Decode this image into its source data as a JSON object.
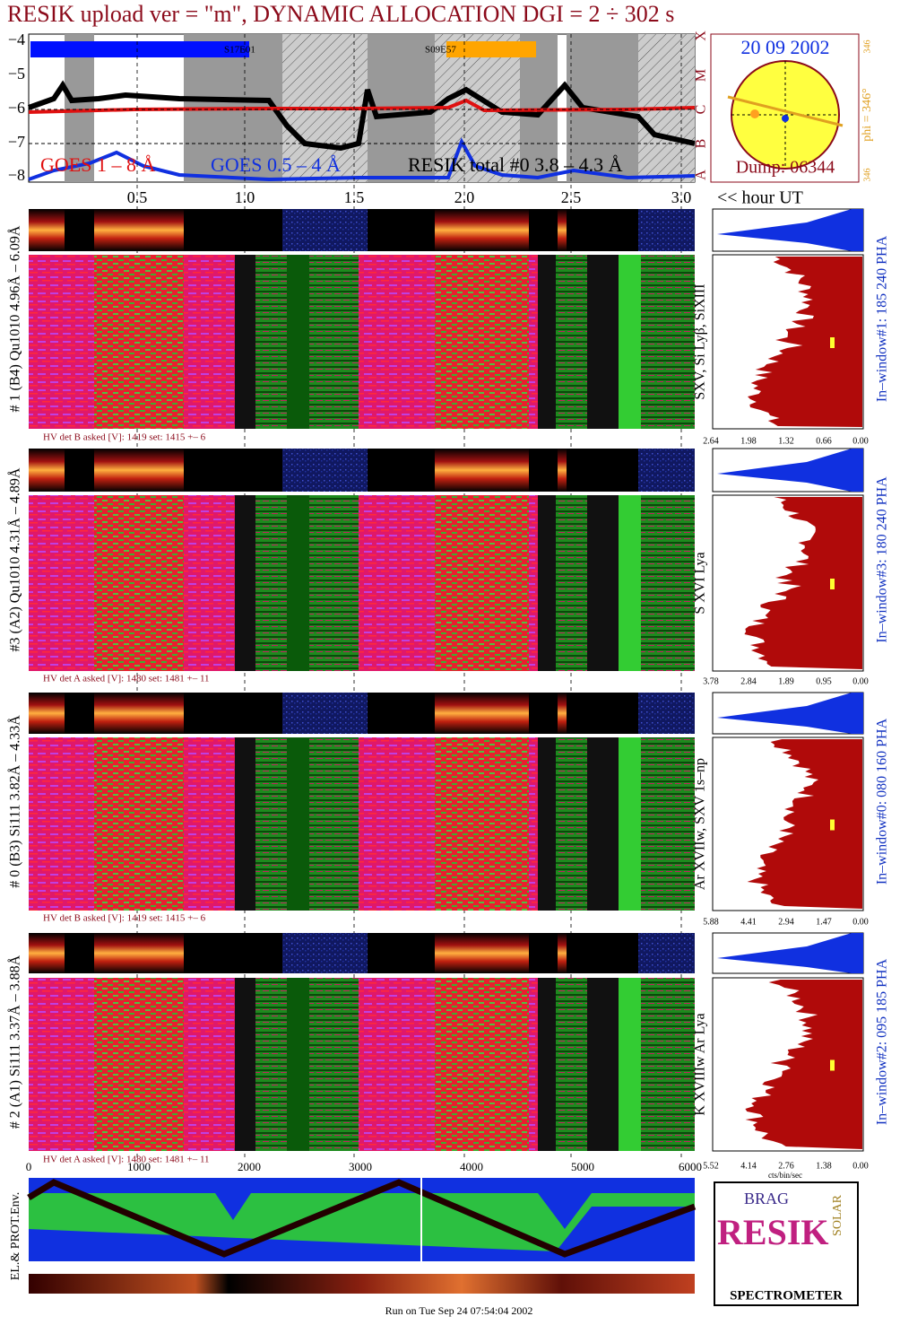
{
  "title": "RESIK upload ver = \"m\", DYNAMIC ALLOCATION  DGI =   2 ÷ 302 s",
  "goes": {
    "yticks": [
      "−4",
      "−5",
      "−6",
      "−7",
      "−8"
    ],
    "labels": [
      "GOES 1 – 8 Å",
      "GOES 0.5 – 4 Å",
      "RESIK total #0  3.8 – 4.3 Å"
    ],
    "xticks": [
      "0.5",
      "1.0",
      "1.5",
      "2.0",
      "2.5",
      "3.0"
    ],
    "x_unit": "<< hour UT",
    "flare_labels": [
      "S17E01",
      "S09E57"
    ],
    "classes": [
      "X",
      "M",
      "C",
      "B",
      "A"
    ]
  },
  "sun": {
    "date": "20 09 2002",
    "phi": "phi = 346°",
    "phi_small": [
      "346",
      "346"
    ],
    "dump": "Dump: 06344"
  },
  "panels": [
    {
      "left": "# 1 (B4) Qu1010 4.96Å – 6.09Å",
      "line": "SXV, Si Lyβ, SiXIII",
      "window": "In–window#1:  185 240 PHA",
      "hv": "HV det B asked [V]:  1419 set:  1415  +–   6",
      "axis": [
        "2.64",
        "1.98",
        "1.32",
        "0.66",
        "0.00"
      ]
    },
    {
      "left": "#3 (A2) Qu1010  4.31Å – 4.89Å",
      "line": "S XVI Lya",
      "window": "In–window#3:  180 240 PHA",
      "hv": "HV det A asked [V]:  1480 set:  1481  +–   11",
      "axis": [
        "3.78",
        "2.84",
        "1.89",
        "0.95",
        "0.00"
      ]
    },
    {
      "left": "# 0 (B3) Si111  3.82Å – 4.33Å",
      "line": "Ar XVIIw, SXV 1s–np",
      "window": "In–window#0:  080 160 PHA",
      "hv": "HV det B asked [V]:  1419 set:  1415  +–   6",
      "axis": [
        "5.88",
        "4.41",
        "2.94",
        "1.47",
        "0.00"
      ]
    },
    {
      "left": "# 2 (A1) Si111  3.37Å – 3.88Å",
      "line": "K XVIIIw  Ar Lya",
      "window": "In–window#2:  095 185 PHA",
      "hv": "HV det A asked [V]:  1480 set:  1481  +–   11",
      "axis": [
        "5.52",
        "4.14",
        "2.76",
        "1.38",
        "0.00"
      ]
    }
  ],
  "time_axis": [
    "0",
    "1000",
    "2000",
    "3000",
    "4000",
    "5000",
    "6000"
  ],
  "hist_unit": "cts/bin/sec",
  "env": "EL.& PROT.Env.",
  "logo": {
    "brag": "BRAG",
    "resik": "RESIK",
    "solar": "SOLAR",
    "spectrometer": "SPECTROMETER"
  },
  "footer": "Run on Tue Sep 24 07:54:04 2002"
}
